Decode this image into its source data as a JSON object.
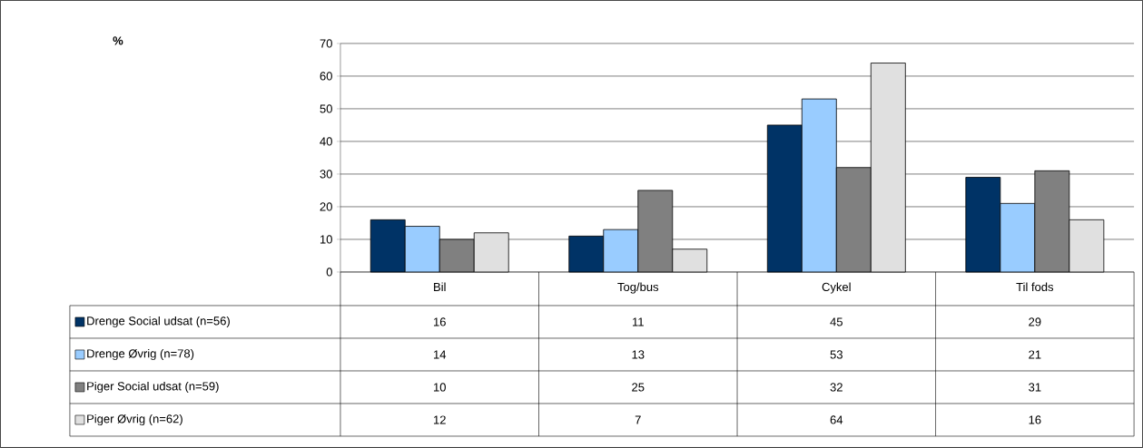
{
  "chart_data": {
    "type": "bar",
    "annotations": [
      "%"
    ],
    "categories": [
      "Bil",
      "Tog/bus",
      "Cykel",
      "Til fods"
    ],
    "series": [
      {
        "name": "Drenge Social udsat (n=56)",
        "color": "#003366",
        "values": [
          16,
          11,
          45,
          29
        ]
      },
      {
        "name": "Drenge Øvrig (n=78)",
        "color": "#99ccff",
        "values": [
          14,
          13,
          53,
          21
        ]
      },
      {
        "name": "Piger Social udsat (n=59)",
        "color": "#808080",
        "values": [
          10,
          25,
          32,
          31
        ]
      },
      {
        "name": "Piger Øvrig (n=62)",
        "color": "#e0e0e0",
        "values": [
          12,
          7,
          64,
          16
        ]
      }
    ],
    "ylim": [
      0,
      70
    ],
    "yticks": [
      0,
      10,
      20,
      30,
      40,
      50,
      60,
      70
    ],
    "grid": "y",
    "legend": "bottom",
    "data_labels": true
  }
}
